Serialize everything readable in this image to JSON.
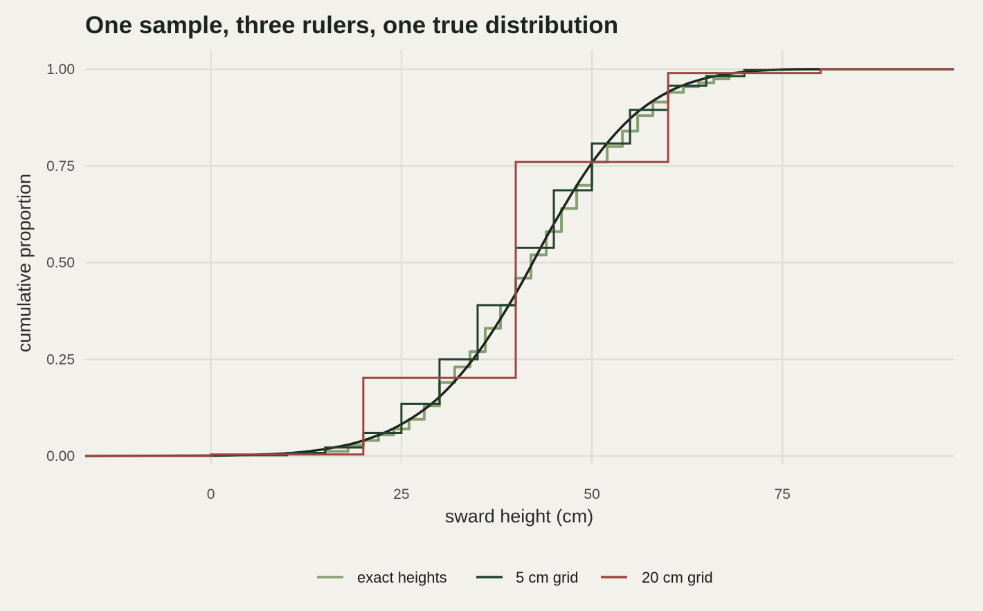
{
  "chart_data": {
    "type": "line",
    "title": "One sample, three rulers, one true distribution",
    "xlabel": "sward height (cm)",
    "ylabel": "cumulative proportion",
    "xlim": [
      -16.5,
      97.5
    ],
    "ylim": [
      0,
      1
    ],
    "x_ticks": [
      0,
      25,
      50,
      75
    ],
    "x_tick_labels": [
      "0",
      "25",
      "50",
      "75"
    ],
    "y_ticks": [
      0,
      0.25,
      0.5,
      0.75,
      1.0
    ],
    "y_tick_labels": [
      "0.00",
      "0.25",
      "0.50",
      "0.75",
      "1.00"
    ],
    "grid": true,
    "legend_position": "bottom",
    "true_distribution": {
      "color": "#1b241d",
      "x": [
        -16.5,
        0,
        5,
        10,
        15,
        20,
        25,
        30,
        35,
        40,
        45,
        50,
        55,
        60,
        65,
        70,
        75,
        80,
        97.5
      ],
      "y": [
        0,
        0.001,
        0.003,
        0.007,
        0.018,
        0.04,
        0.082,
        0.153,
        0.266,
        0.42,
        0.6,
        0.758,
        0.872,
        0.941,
        0.977,
        0.993,
        0.999,
        1.0,
        1.0
      ]
    },
    "series": [
      {
        "name": "exact heights",
        "color": "#86a072",
        "kind": "ecdf",
        "x": [
          12,
          15,
          18,
          20,
          22,
          24,
          26,
          28,
          30,
          32,
          34,
          36,
          38,
          40,
          42,
          44,
          46,
          48,
          50,
          52,
          54,
          56,
          58,
          60,
          62,
          64,
          66,
          68
        ],
        "y": [
          0.006,
          0.012,
          0.028,
          0.04,
          0.055,
          0.07,
          0.095,
          0.13,
          0.19,
          0.23,
          0.27,
          0.33,
          0.39,
          0.46,
          0.52,
          0.58,
          0.64,
          0.7,
          0.76,
          0.8,
          0.84,
          0.88,
          0.915,
          0.94,
          0.955,
          0.965,
          0.975,
          0.985
        ]
      },
      {
        "name": "5 cm grid",
        "color": "#22402e",
        "kind": "step",
        "x": [
          -11,
          0,
          10,
          15,
          20,
          25,
          30,
          35,
          40,
          45,
          50,
          55,
          60,
          65,
          70
        ],
        "y": [
          0,
          0.002,
          0.008,
          0.022,
          0.06,
          0.135,
          0.25,
          0.39,
          0.538,
          0.687,
          0.808,
          0.895,
          0.957,
          0.982,
          0.998
        ]
      },
      {
        "name": "20 cm grid",
        "color": "#a04440",
        "kind": "step",
        "x": [
          -16.5,
          0,
          20,
          40,
          60,
          80
        ],
        "y": [
          0,
          0.004,
          0.202,
          0.76,
          0.99,
          1.0
        ]
      }
    ]
  }
}
